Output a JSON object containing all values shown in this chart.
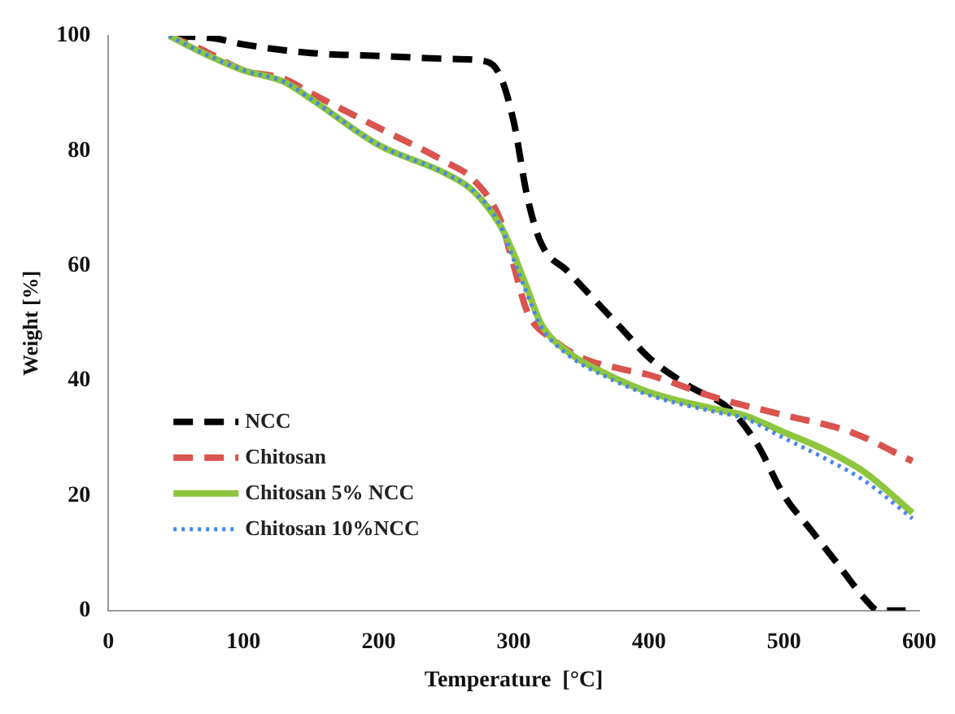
{
  "chart_data": {
    "type": "line",
    "xlabel": "Temperature  [°C]",
    "ylabel": "Weight [%]",
    "xlim": [
      0,
      600
    ],
    "ylim": [
      0,
      100
    ],
    "xticks": [
      0,
      100,
      200,
      300,
      400,
      500,
      600
    ],
    "yticks": [
      0,
      20,
      40,
      60,
      80,
      100
    ],
    "grid": false,
    "legend": "bottom left",
    "marker": "none",
    "series": [
      {
        "name": "NCC",
        "color": "#000000",
        "line_style": "dashed",
        "x": [
          50,
          80,
          100,
          150,
          200,
          250,
          280,
          290,
          300,
          310,
          320,
          340,
          360,
          380,
          400,
          430,
          460,
          480,
          500,
          520,
          540,
          560,
          570,
          590
        ],
        "values": [
          100,
          99.5,
          98.5,
          97,
          96.5,
          96,
          95.5,
          93,
          85,
          72,
          64,
          59,
          54,
          49,
          44,
          39,
          35,
          29,
          20,
          14,
          8,
          2,
          0,
          0
        ]
      },
      {
        "name": "Chitosan",
        "color": "#d9534f",
        "line_style": "dashed",
        "x": [
          45,
          70,
          100,
          130,
          150,
          200,
          250,
          270,
          290,
          300,
          310,
          330,
          350,
          380,
          400,
          450,
          500,
          550,
          595
        ],
        "values": [
          100,
          97.5,
          94,
          92.5,
          90,
          84,
          78,
          75,
          68,
          60,
          52,
          47,
          44,
          42,
          41,
          37,
          34,
          31,
          26
        ]
      },
      {
        "name": "Chitosan 5% NCC",
        "color": "#8dc63f",
        "line_style": "solid",
        "x": [
          45,
          70,
          100,
          130,
          150,
          200,
          250,
          270,
          290,
          300,
          310,
          320,
          340,
          370,
          400,
          450,
          470,
          500,
          530,
          560,
          595
        ],
        "values": [
          100,
          97,
          94,
          92,
          89,
          81,
          76,
          73,
          67,
          62,
          56,
          50,
          45,
          41,
          38,
          35,
          34,
          31,
          28,
          24,
          17
        ]
      },
      {
        "name": "Chitosan 10%NCC",
        "color": "#4a86e8",
        "line_style": "dotted",
        "x": [
          45,
          70,
          100,
          130,
          150,
          200,
          250,
          270,
          290,
          300,
          310,
          320,
          340,
          370,
          400,
          450,
          470,
          500,
          530,
          560,
          595
        ],
        "values": [
          100,
          97,
          94,
          92,
          89,
          81,
          76,
          73,
          67,
          61,
          55,
          49.5,
          44.5,
          40.5,
          37.5,
          34.5,
          33.5,
          30,
          26.5,
          22.5,
          16
        ]
      }
    ]
  }
}
